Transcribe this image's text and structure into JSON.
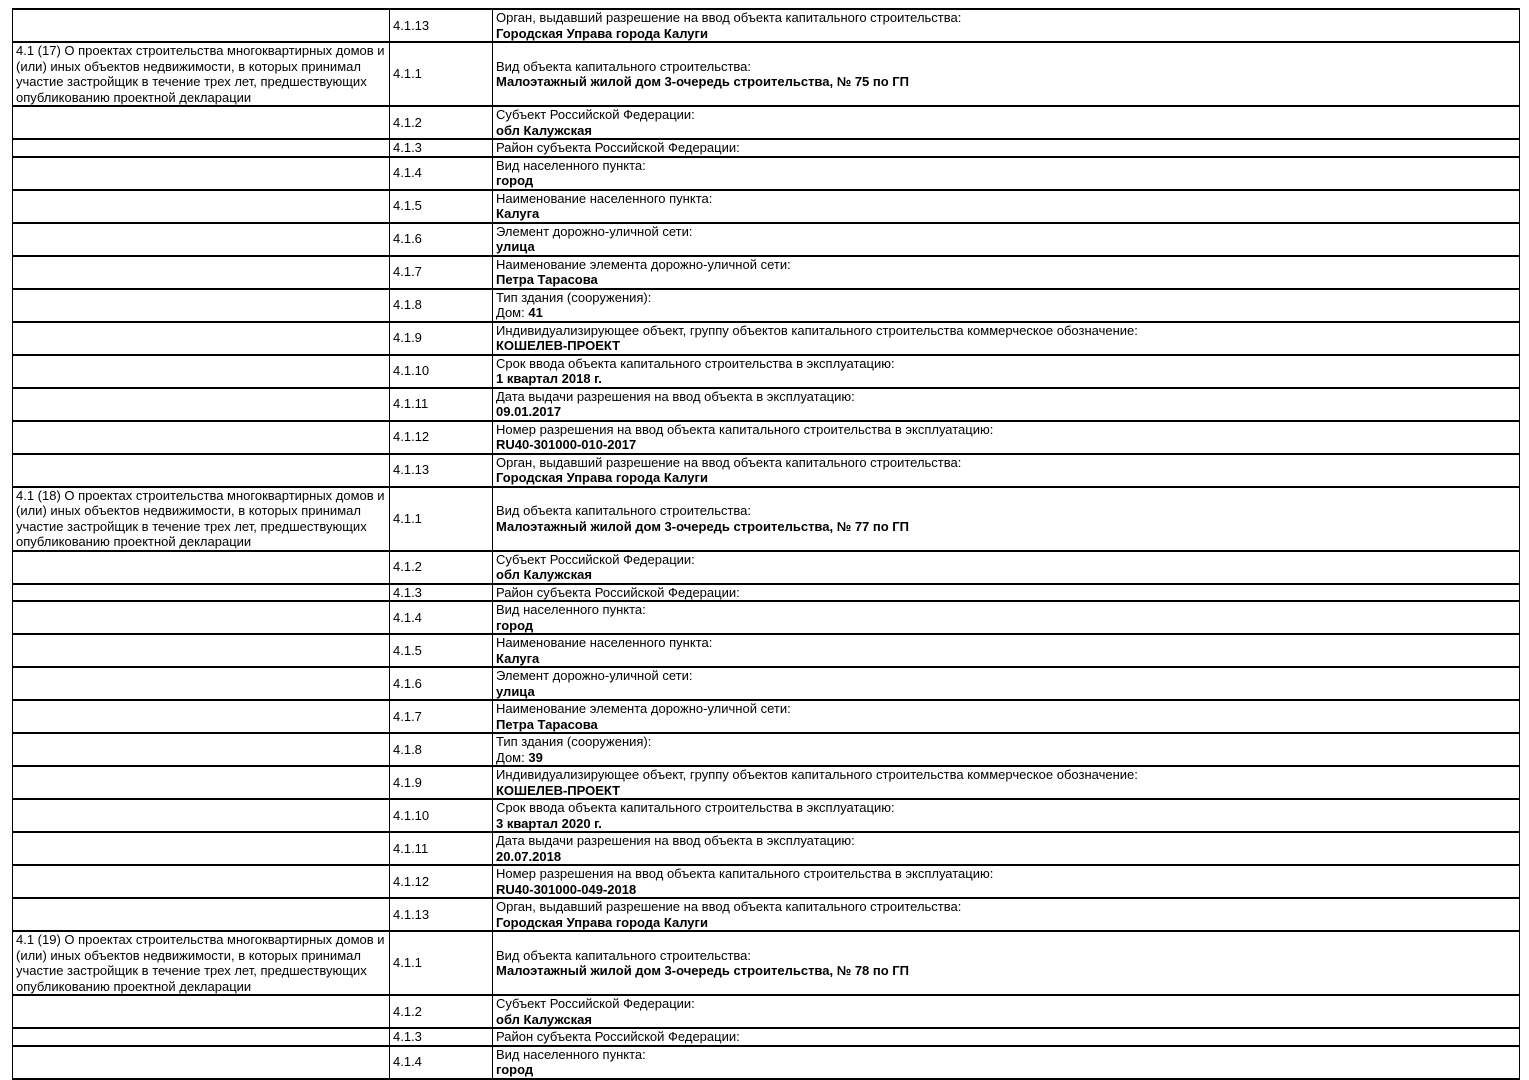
{
  "colors": {
    "border": "#000000",
    "text": "#000000",
    "background": "#ffffff"
  },
  "rows": [
    {
      "section": "",
      "num": "4.1.13",
      "label": "Орган, выдавший разрешение на ввод объекта капитального строительства:",
      "prefix": "",
      "value": "Городская Управа города Калуги"
    },
    {
      "section": "4.1 (17) О проектах строительства многоквартирных домов и (или) иных объектов недвижимости, в которых принимал участие застройщик в течение трех лет, предшествующих опубликованию проектной декларации",
      "num": "4.1.1",
      "label": "Вид объекта капитального строительства:",
      "prefix": "",
      "value": "Малоэтажный жилой дом 3-очередь строительства, № 75 по ГП"
    },
    {
      "section": "",
      "num": "4.1.2",
      "label": "Субъект Российской Федерации:",
      "prefix": "",
      "value": "обл Калужская"
    },
    {
      "section": "",
      "num": "4.1.3",
      "label": "Район субъекта Российской Федерации:",
      "prefix": "",
      "value": ""
    },
    {
      "section": "",
      "num": "4.1.4",
      "label": "Вид населенного пункта:",
      "prefix": "",
      "value": "город"
    },
    {
      "section": "",
      "num": "4.1.5",
      "label": "Наименование населенного пункта:",
      "prefix": "",
      "value": "Калуга"
    },
    {
      "section": "",
      "num": "4.1.6",
      "label": "Элемент дорожно-уличной сети:",
      "prefix": "",
      "value": "улица"
    },
    {
      "section": "",
      "num": "4.1.7",
      "label": "Наименование элемента дорожно-уличной сети:",
      "prefix": "",
      "value": "Петра Тарасова"
    },
    {
      "section": "",
      "num": "4.1.8",
      "label": "Тип здания (сооружения):",
      "prefix": "Дом: ",
      "value": "41"
    },
    {
      "section": "",
      "num": "4.1.9",
      "label": "Индивидуализирующее объект, группу объектов капитального строительства коммерческое обозначение:",
      "prefix": "",
      "value": "КОШЕЛЕВ-ПРОЕКТ"
    },
    {
      "section": "",
      "num": "4.1.10",
      "label": "Срок ввода объекта капитального строительства в эксплуатацию:",
      "prefix": "",
      "value": "1 квартал 2018 г."
    },
    {
      "section": "",
      "num": "4.1.11",
      "label": "Дата выдачи разрешения на ввод объекта в эксплуатацию:",
      "prefix": "",
      "value": "09.01.2017"
    },
    {
      "section": "",
      "num": "4.1.12",
      "label": "Номер разрешения на ввод объекта капитального строительства в эксплуатацию:",
      "prefix": "",
      "value": "RU40-301000-010-2017"
    },
    {
      "section": "",
      "num": "4.1.13",
      "label": "Орган, выдавший разрешение на ввод объекта капитального строительства:",
      "prefix": "",
      "value": "Городская Управа города Калуги"
    },
    {
      "section": "4.1 (18) О проектах строительства многоквартирных домов и (или) иных объектов недвижимости, в которых принимал участие застройщик в течение трех лет, предшествующих опубликованию проектной декларации",
      "num": "4.1.1",
      "label": "Вид объекта капитального строительства:",
      "prefix": "",
      "value": "Малоэтажный жилой дом 3-очередь строительства, № 77 по ГП"
    },
    {
      "section": "",
      "num": "4.1.2",
      "label": "Субъект Российской Федерации:",
      "prefix": "",
      "value": "обл Калужская"
    },
    {
      "section": "",
      "num": "4.1.3",
      "label": "Район субъекта Российской Федерации:",
      "prefix": "",
      "value": ""
    },
    {
      "section": "",
      "num": "4.1.4",
      "label": "Вид населенного пункта:",
      "prefix": "",
      "value": "город"
    },
    {
      "section": "",
      "num": "4.1.5",
      "label": "Наименование населенного пункта:",
      "prefix": "",
      "value": "Калуга"
    },
    {
      "section": "",
      "num": "4.1.6",
      "label": "Элемент дорожно-уличной сети:",
      "prefix": "",
      "value": "улица"
    },
    {
      "section": "",
      "num": "4.1.7",
      "label": "Наименование элемента дорожно-уличной сети:",
      "prefix": "",
      "value": "Петра Тарасова"
    },
    {
      "section": "",
      "num": "4.1.8",
      "label": "Тип здания (сооружения):",
      "prefix": "Дом: ",
      "value": "39"
    },
    {
      "section": "",
      "num": "4.1.9",
      "label": "Индивидуализирующее объект, группу объектов капитального строительства коммерческое обозначение:",
      "prefix": "",
      "value": "КОШЕЛЕВ-ПРОЕКТ"
    },
    {
      "section": "",
      "num": "4.1.10",
      "label": "Срок ввода объекта капитального строительства в эксплуатацию:",
      "prefix": "",
      "value": "3 квартал 2020 г."
    },
    {
      "section": "",
      "num": "4.1.11",
      "label": "Дата выдачи разрешения на ввод объекта в эксплуатацию:",
      "prefix": "",
      "value": "20.07.2018"
    },
    {
      "section": "",
      "num": "4.1.12",
      "label": "Номер разрешения на ввод объекта капитального строительства в эксплуатацию:",
      "prefix": "",
      "value": "RU40-301000-049-2018"
    },
    {
      "section": "",
      "num": "4.1.13",
      "label": "Орган, выдавший разрешение на ввод объекта капитального строительства:",
      "prefix": "",
      "value": "Городская Управа города Калуги"
    },
    {
      "section": "4.1 (19) О проектах строительства многоквартирных домов и (или) иных объектов недвижимости, в которых принимал участие застройщик в течение трех лет, предшествующих опубликованию проектной декларации",
      "num": "4.1.1",
      "label": "Вид объекта капитального строительства:",
      "prefix": "",
      "value": "Малоэтажный жилой дом 3-очередь строительства, № 78 по ГП"
    },
    {
      "section": "",
      "num": "4.1.2",
      "label": "Субъект Российской Федерации:",
      "prefix": "",
      "value": "обл Калужская"
    },
    {
      "section": "",
      "num": "4.1.3",
      "label": "Район субъекта Российской Федерации:",
      "prefix": "",
      "value": ""
    },
    {
      "section": "",
      "num": "4.1.4",
      "label": "Вид населенного пункта:",
      "prefix": "",
      "value": "город"
    }
  ]
}
